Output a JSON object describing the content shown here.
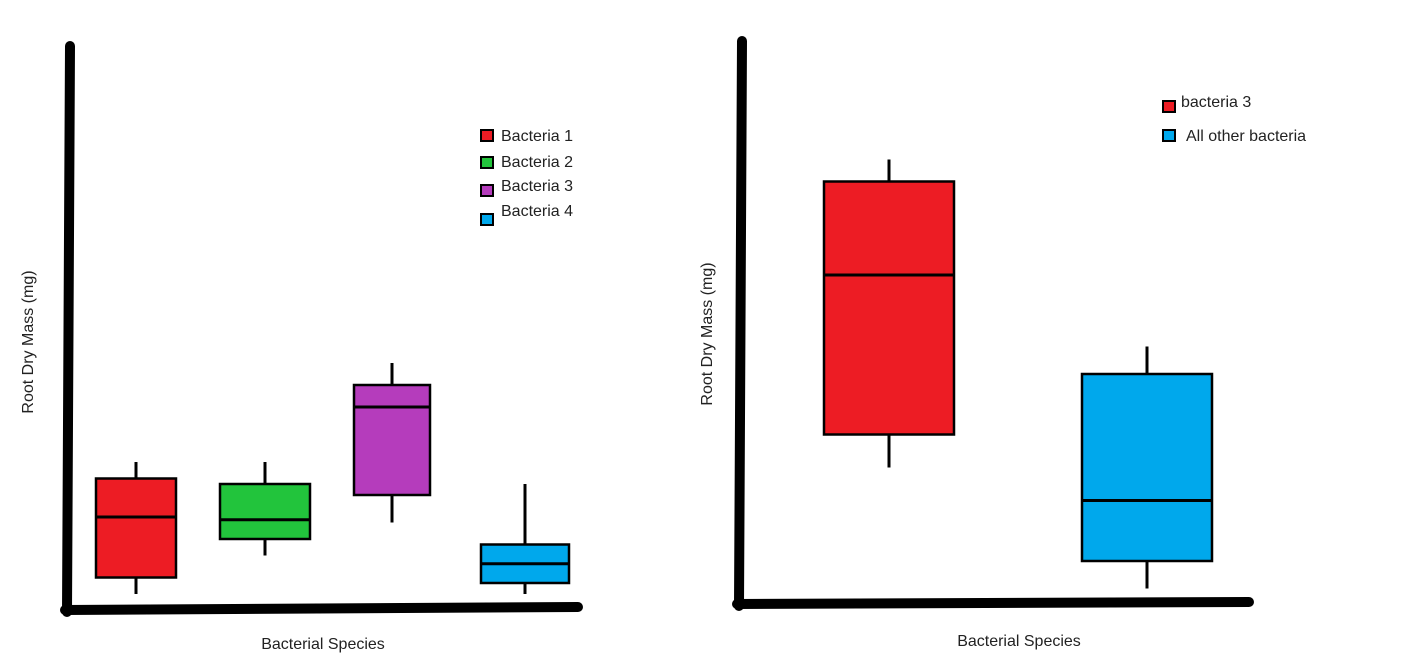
{
  "charts": [
    {
      "chart_data": {
        "type": "box",
        "title": "",
        "xlabel": "Bacterial Species",
        "ylabel": "Root Dry Mass (mg)",
        "ylim": [
          0,
          100
        ],
        "categories": [
          "Bacteria 1",
          "Bacteria 2",
          "Bacteria 3",
          "Bacteria 4"
        ],
        "series": [
          {
            "name": "Bacteria 1",
            "color": "#ed1c24",
            "whisker_low": 2,
            "q1": 5,
            "median": 16,
            "q3": 23,
            "whisker_high": 26
          },
          {
            "name": "Bacteria 2",
            "color": "#22c43c",
            "whisker_low": 9,
            "q1": 12,
            "median": 15.5,
            "q3": 22,
            "whisker_high": 26
          },
          {
            "name": "Bacteria 3",
            "color": "#b53cbc",
            "whisker_low": 15,
            "q1": 20,
            "median": 36,
            "q3": 40,
            "whisker_high": 44
          },
          {
            "name": "Bacteria 4",
            "color": "#00a8ec",
            "whisker_low": 2,
            "q1": 4,
            "median": 7.5,
            "q3": 11,
            "whisker_high": 22
          }
        ],
        "legend_position": "top-right",
        "grid": false
      }
    },
    {
      "chart_data": {
        "type": "box",
        "title": "",
        "xlabel": "Bacterial Species",
        "ylabel": "Root Dry Mass (mg)",
        "ylim": [
          0,
          100
        ],
        "categories": [
          "bacteria 3",
          "All other bacteria"
        ],
        "series": [
          {
            "name": "bacteria 3",
            "color": "#ed1c24",
            "whisker_low": 25,
            "q1": 31,
            "median": 60,
            "q3": 77,
            "whisker_high": 81
          },
          {
            "name": "All other bacteria",
            "color": "#00a8ec",
            "whisker_low": 3,
            "q1": 8,
            "median": 19,
            "q3": 42,
            "whisker_high": 47
          }
        ],
        "legend_position": "top-right",
        "grid": false
      }
    }
  ]
}
